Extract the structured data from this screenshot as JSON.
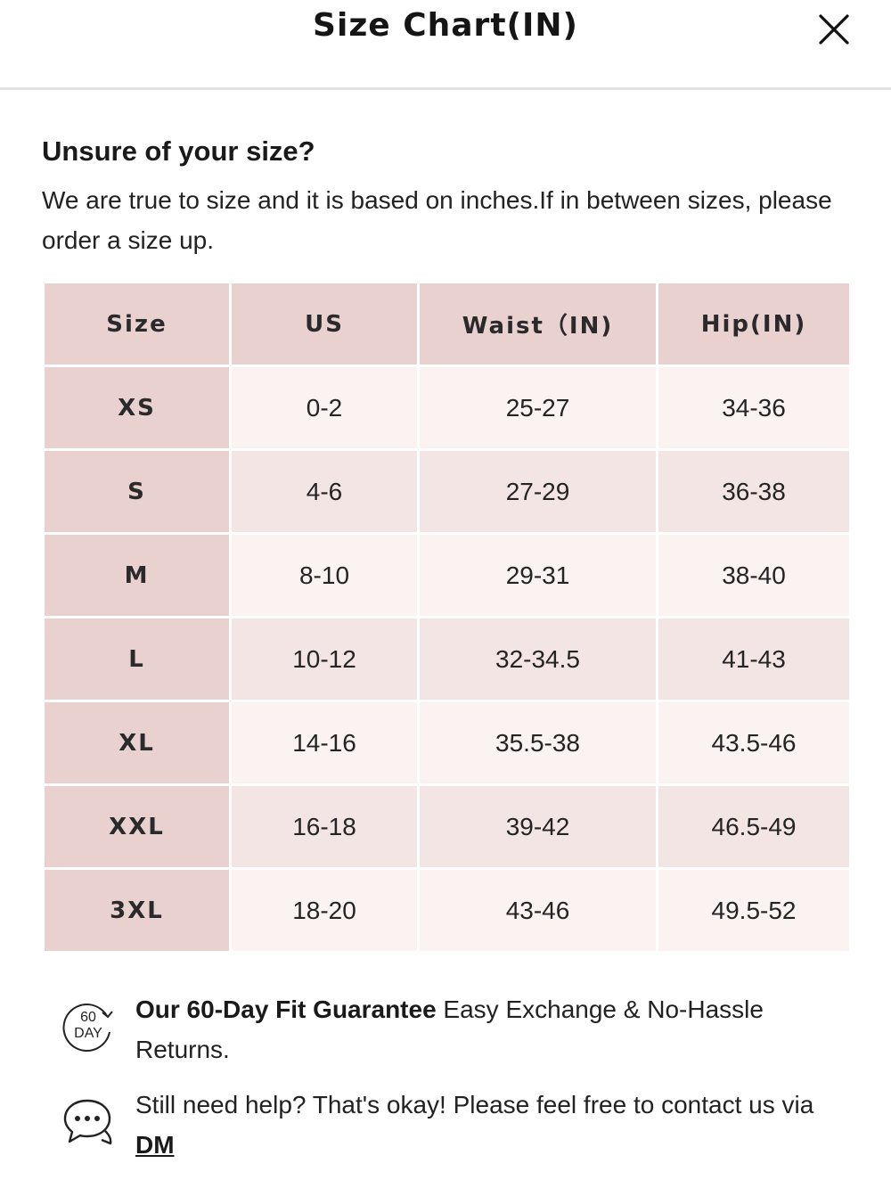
{
  "header": {
    "title": "Size Chart(IN)"
  },
  "intro": {
    "heading": "Unsure of your size?",
    "text": "We are true to size and it is based on inches.If in between sizes, please order a size up."
  },
  "table": {
    "headers": [
      "Size",
      "US",
      "Waist（IN)",
      "Hip(IN)"
    ],
    "rows": [
      [
        "XS",
        "0-2",
        "25-27",
        "34-36"
      ],
      [
        "S",
        "4-6",
        "27-29",
        "36-38"
      ],
      [
        "M",
        "8-10",
        "29-31",
        "38-40"
      ],
      [
        "L",
        "10-12",
        "32-34.5",
        "41-43"
      ],
      [
        "XL",
        "14-16",
        "35.5-38",
        "43.5-46"
      ],
      [
        "XXL",
        "16-18",
        "39-42",
        "46.5-49"
      ],
      [
        "3XL",
        "18-20",
        "43-46",
        "49.5-52"
      ]
    ]
  },
  "guarantee": {
    "icon": "60-day-icon",
    "icon_top": "60",
    "icon_bottom": "DAY",
    "bold": "Our 60-Day Fit Guarantee",
    "text": " Easy Exchange & No-Hassle Returns."
  },
  "help": {
    "icon": "chat-bubble-icon",
    "text": "Still need help? That's okay! Please feel free to contact us via ",
    "link": "DM"
  },
  "colors": {
    "header_cell": "#e9d1d0",
    "row_light": "#fbf2f2",
    "row_dark": "#f4e5e5",
    "divider": "#e2e2e2"
  }
}
